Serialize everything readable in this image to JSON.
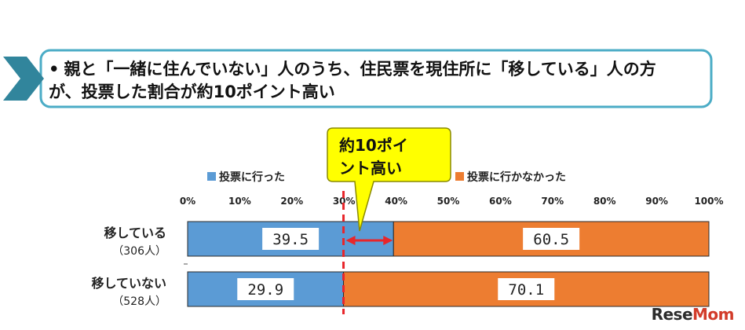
{
  "banner": {
    "bullet": "•",
    "line1": "親と「一緒に住んでいない」人のうち、住民票を現住所に「移している」人の方",
    "line2": "が、投票した割合が約10ポイント高い"
  },
  "callout": {
    "line1": "約10ポイ",
    "line2": "ント高い"
  },
  "watermark": {
    "prefix": "Rese",
    "suffix": "Mom"
  },
  "colors": {
    "voted": "#5b9bd5",
    "not_voted": "#ed7d31",
    "callout": "#ffff00",
    "banner_border": "#4bacc6",
    "banner_arrow": "#31859c",
    "marker": "#e8262b"
  },
  "chart_data": {
    "type": "bar",
    "orientation": "horizontal",
    "stacked": true,
    "categories": [
      "移している（306人）",
      "移していない（528人）"
    ],
    "category_labels": [
      {
        "name": "移している",
        "count": "（306人）"
      },
      {
        "name": "移していない",
        "count": "（528人）"
      }
    ],
    "series": [
      {
        "name": "投票に行った",
        "values": [
          39.5,
          29.9
        ]
      },
      {
        "name": "投票に行かなかった",
        "values": [
          60.5,
          70.1
        ]
      }
    ],
    "value_labels": [
      [
        "39.5",
        "29.9"
      ],
      [
        "60.5",
        "70.1"
      ]
    ],
    "xlim": [
      0,
      100
    ],
    "ticks": [
      "0%",
      "10%",
      "20%",
      "30%",
      "40%",
      "50%",
      "60%",
      "70%",
      "80%",
      "90%",
      "100%"
    ],
    "legend_position": "top",
    "reference_line": 29.9,
    "difference_arrow": [
      29.9,
      39.5
    ]
  }
}
